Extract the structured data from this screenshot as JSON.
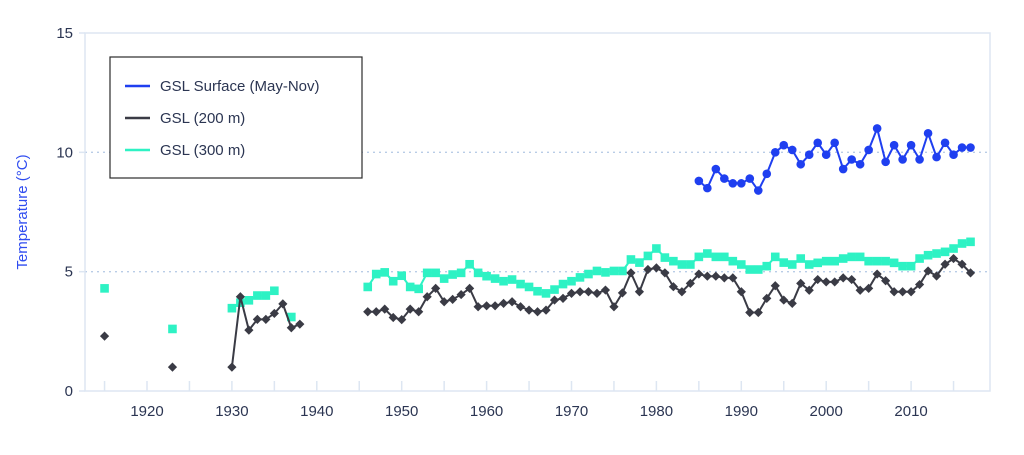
{
  "chart_data": {
    "type": "line",
    "title": "",
    "xlabel": "",
    "ylabel": "Temperature (°C)",
    "xlim": [
      1912,
      2019
    ],
    "ylim": [
      0,
      15
    ],
    "xticks": [
      1920,
      1930,
      1940,
      1950,
      1960,
      1970,
      1980,
      1990,
      2000,
      2010
    ],
    "yticks": [
      0,
      5,
      10,
      15
    ],
    "grid": "horizontal dotted at 5 and 10",
    "legend": "top-left",
    "series": [
      {
        "name": "GSL Surface (May-Nov)",
        "color": "#1f3ff0",
        "marker": "circle",
        "x": [
          1985,
          1986,
          1987,
          1988,
          1989,
          1990,
          1991,
          1992,
          1993,
          1994,
          1995,
          1996,
          1997,
          1998,
          1999,
          2000,
          2001,
          2002,
          2003,
          2004,
          2005,
          2006,
          2007,
          2008,
          2009,
          2010,
          2011,
          2012,
          2013,
          2014,
          2015,
          2016,
          2017
        ],
        "y": [
          8.8,
          8.5,
          9.3,
          8.9,
          8.7,
          8.7,
          8.9,
          8.4,
          9.1,
          10.0,
          10.3,
          10.1,
          9.5,
          9.9,
          10.4,
          9.9,
          10.4,
          9.3,
          9.7,
          9.5,
          10.1,
          11.0,
          9.6,
          10.3,
          9.7,
          10.3,
          9.7,
          10.8,
          9.8,
          10.4,
          9.9,
          10.2,
          10.2
        ]
      },
      {
        "name": "GSL (200 m)",
        "color": "#3a3b45",
        "marker": "diamond",
        "x": [
          1915,
          1923,
          1930,
          1931,
          1932,
          1933,
          1934,
          1935,
          1936,
          1937,
          1938,
          1946,
          1947,
          1948,
          1949,
          1950,
          1951,
          1952,
          1953,
          1954,
          1955,
          1956,
          1957,
          1958,
          1959,
          1960,
          1961,
          1962,
          1963,
          1964,
          1965,
          1966,
          1967,
          1968,
          1969,
          1970,
          1971,
          1972,
          1973,
          1974,
          1975,
          1976,
          1977,
          1978,
          1979,
          1980,
          1981,
          1982,
          1983,
          1984,
          1985,
          1986,
          1987,
          1988,
          1989,
          1990,
          1991,
          1992,
          1993,
          1994,
          1995,
          1996,
          1997,
          1998,
          1999,
          2000,
          2001,
          2002,
          2003,
          2004,
          2005,
          2006,
          2007,
          2008,
          2009,
          2010,
          2011,
          2012,
          2013,
          2014,
          2015,
          2016,
          2017
        ],
        "y": [
          2.3,
          1.0,
          1.0,
          3.95,
          2.55,
          3.0,
          3.0,
          3.25,
          3.65,
          2.65,
          2.8,
          3.32,
          3.32,
          3.43,
          3.08,
          2.99,
          3.43,
          3.32,
          3.95,
          4.3,
          3.74,
          3.84,
          4.04,
          4.3,
          3.53,
          3.57,
          3.57,
          3.67,
          3.74,
          3.53,
          3.39,
          3.32,
          3.39,
          3.81,
          3.88,
          4.09,
          4.16,
          4.16,
          4.09,
          4.23,
          3.53,
          4.11,
          4.95,
          4.16,
          5.09,
          5.16,
          4.95,
          4.37,
          4.16,
          4.51,
          4.9,
          4.81,
          4.81,
          4.74,
          4.74,
          4.16,
          3.29,
          3.29,
          3.88,
          4.41,
          3.81,
          3.67,
          4.51,
          4.22,
          4.67,
          4.57,
          4.57,
          4.74,
          4.67,
          4.22,
          4.3,
          4.9,
          4.62,
          4.16,
          4.16,
          4.16,
          4.46,
          5.03,
          4.82,
          5.31,
          5.55,
          5.31,
          4.95
        ]
      },
      {
        "name": "GSL (300 m)",
        "color": "#2ef2c4",
        "marker": "square",
        "x": [
          1915,
          1923,
          1930,
          1931,
          1932,
          1933,
          1934,
          1935,
          1937,
          1946,
          1947,
          1948,
          1949,
          1950,
          1951,
          1952,
          1953,
          1954,
          1955,
          1956,
          1957,
          1958,
          1959,
          1960,
          1961,
          1962,
          1963,
          1964,
          1965,
          1966,
          1967,
          1968,
          1969,
          1970,
          1971,
          1972,
          1973,
          1974,
          1975,
          1976,
          1977,
          1978,
          1979,
          1980,
          1981,
          1982,
          1983,
          1984,
          1985,
          1986,
          1987,
          1988,
          1989,
          1990,
          1991,
          1992,
          1993,
          1994,
          1995,
          1996,
          1997,
          1998,
          1999,
          2000,
          2001,
          2002,
          2003,
          2004,
          2005,
          2006,
          2007,
          2008,
          2009,
          2010,
          2011,
          2012,
          2013,
          2014,
          2015,
          2016,
          2017
        ],
        "y": [
          4.3,
          2.6,
          3.47,
          3.7,
          3.8,
          4.0,
          4.0,
          4.2,
          3.1,
          4.36,
          4.9,
          4.97,
          4.6,
          4.83,
          4.36,
          4.28,
          4.95,
          4.95,
          4.71,
          4.88,
          4.95,
          5.31,
          4.95,
          4.81,
          4.71,
          4.6,
          4.67,
          4.48,
          4.36,
          4.18,
          4.09,
          4.25,
          4.48,
          4.6,
          4.76,
          4.9,
          5.03,
          4.97,
          5.03,
          5.03,
          5.51,
          5.38,
          5.66,
          5.97,
          5.59,
          5.44,
          5.3,
          5.3,
          5.62,
          5.76,
          5.62,
          5.62,
          5.44,
          5.3,
          5.09,
          5.09,
          5.23,
          5.62,
          5.38,
          5.3,
          5.55,
          5.3,
          5.37,
          5.44,
          5.44,
          5.55,
          5.62,
          5.62,
          5.44,
          5.44,
          5.44,
          5.37,
          5.23,
          5.23,
          5.55,
          5.69,
          5.76,
          5.83,
          5.97,
          6.18,
          6.25
        ]
      }
    ]
  }
}
